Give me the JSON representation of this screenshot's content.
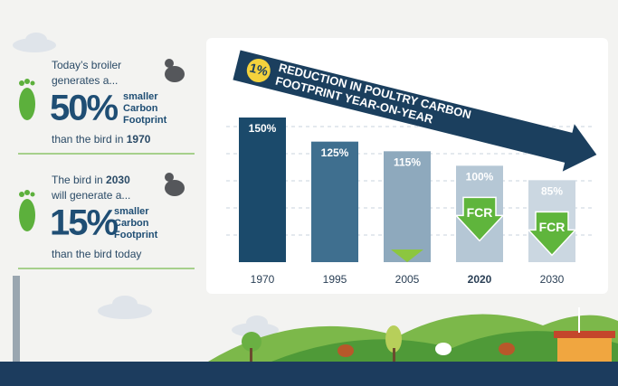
{
  "panels": [
    {
      "line1": "Today’s broiler",
      "line2": "generates a...",
      "percent": "50%",
      "sub1": "smaller",
      "sub2": "Carbon",
      "sub3": "Footprint",
      "line3": "than the bird in",
      "year": "1970"
    },
    {
      "line1": "The bird in",
      "year": "2030",
      "line2": "will generate a...",
      "percent": "15%",
      "sub1": "smaller",
      "sub2": "Carbon",
      "sub3": "Footprint",
      "line3": "than the bird today"
    }
  ],
  "chart_data": {
    "type": "bar",
    "banner": {
      "badge": "1%",
      "line1": "REDUCTION IN POULTRY CARBON",
      "line2": "FOOTPRINT YEAR-ON-YEAR"
    },
    "categories": [
      "1970",
      "1995",
      "2005",
      "2020",
      "2030"
    ],
    "values": [
      150,
      125,
      115,
      100,
      85
    ],
    "value_labels": [
      "150%",
      "125%",
      "115%",
      "100%",
      "85%"
    ],
    "colors": [
      "#1b4a6b",
      "#3f6f8f",
      "#8ea9bd",
      "#b5c7d5",
      "#cbd7e1"
    ],
    "highlight": "2020",
    "annotations": [
      {
        "text": "FCR",
        "category": "2020"
      },
      {
        "text": "FCR",
        "category": "2030"
      }
    ]
  }
}
